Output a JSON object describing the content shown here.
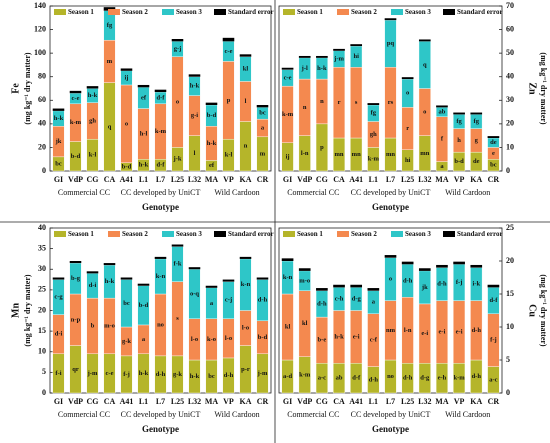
{
  "chart_data": [
    {
      "type": "bar",
      "stacked": true,
      "ylabel": "Fe",
      "yunit": "(mg kg⁻¹ dry matter)",
      "xlabel": "Genotype",
      "yaxis_side": "left",
      "legend": "top",
      "categories": [
        "GI",
        "VdP",
        "CG",
        "CA",
        "A41",
        "L1",
        "L7",
        "L25",
        "L32",
        "MA",
        "VP",
        "KA",
        "CR"
      ],
      "groups": [
        "Commercial CC",
        "CC developed by UniCT",
        "Wild Cardoon"
      ],
      "ylim": [
        0,
        140
      ],
      "yticks": [
        0,
        20,
        40,
        60,
        80,
        100,
        120,
        140
      ],
      "series": [
        {
          "name": "Season 1",
          "color": "#b5b52a",
          "values": [
            12,
            25,
            27,
            75,
            7,
            10,
            10,
            20,
            30,
            9,
            27,
            42,
            29
          ],
          "letters": [
            "bc",
            "b-d",
            "k-l",
            "q",
            "b-d",
            "h-k",
            "d-f",
            "j-k",
            "l",
            "ef",
            "k-l",
            "n",
            "m"
          ]
        },
        {
          "name": "Season 2",
          "color": "#f4894f",
          "values": [
            26,
            32,
            31,
            36,
            66,
            43,
            47,
            77,
            34,
            29,
            66,
            34,
            15
          ],
          "letters": [
            "jk",
            "k-m",
            "gh",
            "m",
            "o",
            "h-l",
            "k-m",
            "o",
            "g-i",
            "h-k",
            "p",
            "l",
            "a"
          ]
        },
        {
          "name": "Season 3",
          "color": "#2ec6c8",
          "values": [
            13,
            9,
            12,
            25,
            12,
            18,
            10,
            13,
            16,
            18,
            17,
            21,
            10
          ],
          "letters": [
            "h-k",
            "c-e",
            "h-k",
            "fg",
            "ij",
            "ef",
            "d-f",
            "g-j",
            "h-k",
            "b-d",
            "c-e",
            "kl",
            "bc"
          ]
        },
        {
          "name": "Standard error",
          "color": "#000000",
          "values": [
            2,
            2,
            2,
            3,
            2,
            2,
            2,
            2,
            2,
            2,
            3,
            2,
            2
          ]
        }
      ]
    },
    {
      "type": "bar",
      "stacked": true,
      "ylabel": "Zn",
      "yunit": "(mg kg⁻¹ dry matter)",
      "xlabel": "Genotype",
      "yaxis_side": "right",
      "legend": "top",
      "categories": [
        "GI",
        "VdP",
        "CG",
        "CA",
        "A41",
        "L1",
        "L7",
        "L25",
        "L32",
        "MA",
        "VP",
        "KA",
        "CR"
      ],
      "groups": [
        "Commercial CC",
        "CC developed by UniCT",
        "Wild Cardoon"
      ],
      "ylim": [
        0,
        70
      ],
      "yticks": [
        0,
        10,
        20,
        30,
        40,
        50,
        60,
        70
      ],
      "series": [
        {
          "name": "Season 1",
          "color": "#b5b52a",
          "values": [
            12,
            15,
            20,
            14,
            14,
            10,
            14,
            9,
            15,
            4,
            8,
            8,
            5
          ],
          "letters": [
            "ij",
            "l-n",
            "p",
            "mn",
            "mn",
            "k-m",
            "mn",
            "hi",
            "mn",
            "a",
            "b-d",
            "de",
            "bc"
          ]
        },
        {
          "name": "Season 2",
          "color": "#f4894f",
          "values": [
            24,
            24,
            19,
            30,
            30,
            11,
            30,
            18,
            20,
            19,
            10,
            10,
            5
          ],
          "letters": [
            "k-m",
            "n",
            "n",
            "r",
            "s",
            "gh",
            "rs",
            "r",
            "o",
            "f",
            "h",
            "g",
            "e"
          ]
        },
        {
          "name": "Season 3",
          "color": "#2ec6c8",
          "values": [
            7,
            9,
            9,
            7,
            9,
            7,
            20,
            12,
            20,
            4,
            6,
            6,
            4
          ],
          "letters": [
            "c-e",
            "j-l",
            "h-k",
            "j-m",
            "hi",
            "fg",
            "pq",
            "o",
            "q",
            "ab",
            "fg",
            "fg",
            "de"
          ]
        },
        {
          "name": "Standard error",
          "color": "#000000",
          "values": [
            0.8,
            0.8,
            0.8,
            0.8,
            0.8,
            0.8,
            0.8,
            0.8,
            0.8,
            0.8,
            0.8,
            0.8,
            0.8
          ]
        }
      ]
    },
    {
      "type": "bar",
      "stacked": true,
      "ylabel": "Mn",
      "yunit": "(mg kg⁻¹ dry matter)",
      "xlabel": "Genotype",
      "yaxis_side": "left",
      "legend": "top",
      "categories": [
        "GI",
        "VdP",
        "CG",
        "CA",
        "A41",
        "L1",
        "L7",
        "L25",
        "L32",
        "MA",
        "VP",
        "KA",
        "CR"
      ],
      "groups": [
        "Commercial CC",
        "CC developed by UniCT",
        "Wild Cardoon"
      ],
      "ylim": [
        0,
        40
      ],
      "yticks": [
        0,
        5,
        10,
        15,
        20,
        25,
        30,
        35,
        40
      ],
      "series": [
        {
          "name": "Season 1",
          "color": "#b5b52a",
          "values": [
            9.5,
            11.5,
            9.5,
            9.5,
            9,
            9.5,
            9,
            9,
            8,
            8,
            8.5,
            11.5,
            9.5
          ],
          "letters": [
            "f-i",
            "qr",
            "j-m",
            "c-e",
            "f-j",
            "h-k",
            "d-h",
            "g-k",
            "h-k",
            "bc",
            "d-h",
            "p-r",
            "j-m"
          ]
        },
        {
          "name": "Season 2",
          "color": "#f4894f",
          "values": [
            9.5,
            12.5,
            13.5,
            13.5,
            7,
            7,
            15,
            18,
            10,
            10,
            9.5,
            8.5,
            8
          ],
          "letters": [
            "d-i",
            "n-p",
            "b",
            "m-o",
            "g-k",
            "a",
            "no",
            "s",
            "l-o",
            "k-o",
            "l-o",
            "l-o",
            "b-d"
          ]
        },
        {
          "name": "Season 3",
          "color": "#2ec6c8",
          "values": [
            8.5,
            7.5,
            6,
            8,
            11.5,
            9.5,
            8.5,
            8.5,
            12,
            7.5,
            9,
            12.5,
            10
          ],
          "letters": [
            "c-g",
            "b-g",
            "d-i",
            "h-k",
            "bc",
            "b-d",
            "k-n",
            "f-k",
            "o-q",
            "a",
            "c-j",
            "k-n",
            "d-h"
          ]
        },
        {
          "name": "Standard error",
          "color": "#000000",
          "values": [
            0.5,
            0.5,
            0.5,
            0.5,
            0.5,
            0.5,
            0.5,
            0.5,
            0.5,
            0.5,
            0.5,
            0.5,
            0.5
          ]
        }
      ]
    },
    {
      "type": "bar",
      "stacked": true,
      "ylabel": "Cu",
      "yunit": "(mg kg⁻¹ dry matter)",
      "xlabel": "Genotype",
      "yaxis_side": "right",
      "legend": "top",
      "categories": [
        "GI",
        "VdP",
        "CG",
        "CA",
        "A41",
        "L1",
        "L7",
        "L25",
        "L32",
        "MA",
        "VP",
        "KA",
        "CR"
      ],
      "groups": [
        "Commercial CC",
        "CC developed by UniCT",
        "Wild Cardoon"
      ],
      "ylim": [
        0,
        25
      ],
      "yticks": [
        0,
        5,
        10,
        15,
        20,
        25
      ],
      "series": [
        {
          "name": "Season 1",
          "color": "#b5b52a",
          "values": [
            5,
            5.5,
            4.5,
            4.5,
            4.5,
            4,
            5,
            4.5,
            4.5,
            4.5,
            4.5,
            5,
            4
          ],
          "letters": [
            "a-d",
            "k-m",
            "a-c",
            "ab",
            "d-f",
            "d-h",
            "no",
            "d-h",
            "d-g",
            "e-h",
            "k-m",
            "d-h",
            "a-c"
          ]
        },
        {
          "name": "Season 2",
          "color": "#f4894f",
          "values": [
            10,
            10,
            7,
            8,
            8,
            8,
            9,
            10,
            9,
            9.5,
            9.5,
            9,
            8
          ],
          "letters": [
            "kl",
            "kl",
            "b-e",
            "h-k",
            "e-i",
            "c-f",
            "nm",
            "l-n",
            "e-i",
            "e-i",
            "e-i",
            "d-h",
            "f-j"
          ]
        },
        {
          "name": "Season 3",
          "color": "#2ec6c8",
          "values": [
            5,
            3,
            4,
            3.5,
            3.5,
            3.5,
            6.5,
            5,
            5,
            5,
            5.5,
            5,
            4
          ],
          "letters": [
            "k-n",
            "m-o",
            "d-h",
            "c-h",
            "d-g",
            "a",
            "o",
            "d-h",
            "jk",
            "d-h",
            "f-j",
            "i-k",
            "d-f"
          ]
        },
        {
          "name": "Standard error",
          "color": "#000000",
          "values": [
            0.4,
            0.4,
            0.4,
            0.4,
            0.4,
            0.4,
            0.4,
            0.4,
            0.4,
            0.4,
            0.4,
            0.4,
            0.4
          ]
        }
      ]
    }
  ]
}
